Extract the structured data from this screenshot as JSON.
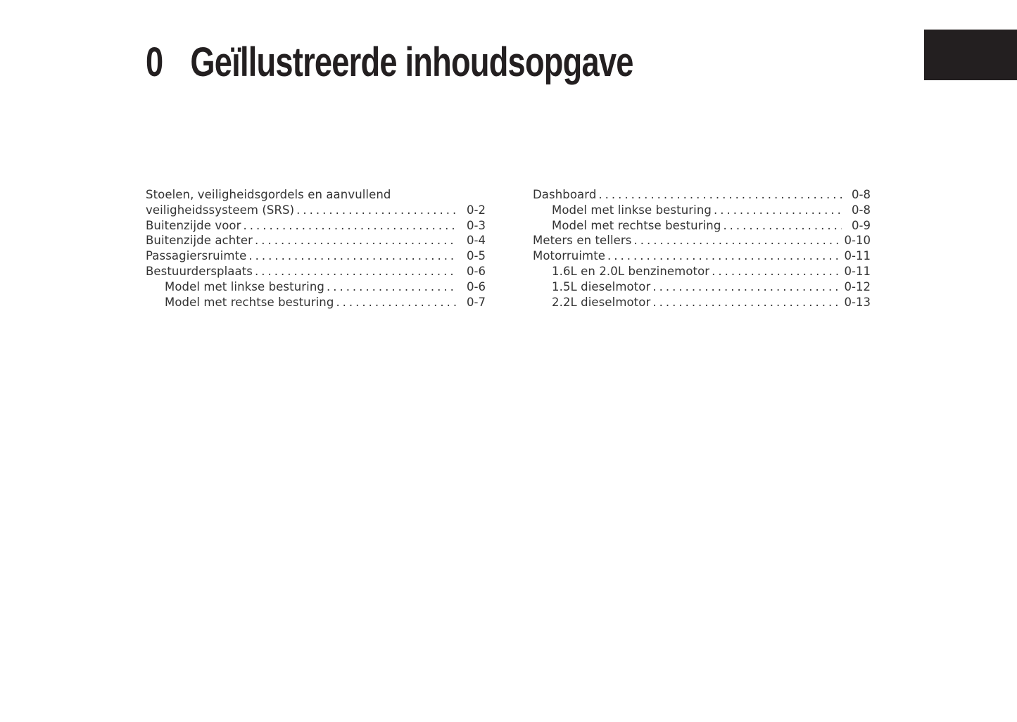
{
  "page": {
    "background_color": "#ffffff",
    "text_color": "#333333",
    "accent_black": "#231f20"
  },
  "header": {
    "chapter_number": "0",
    "title": "Geïllustreerde inhoudsopgave"
  },
  "toc": {
    "columns": [
      {
        "entries": [
          {
            "text": "Stoelen, veiligheidsgordels en aanvullend",
            "page": "",
            "indent": 0
          },
          {
            "text": "veiligheidssysteem (SRS)",
            "page": "0-2",
            "indent": 0
          },
          {
            "text": "Buitenzijde voor",
            "page": "0-3",
            "indent": 0
          },
          {
            "text": "Buitenzijde achter",
            "page": "0-4",
            "indent": 0
          },
          {
            "text": "Passagiersruimte",
            "page": "0-5",
            "indent": 0
          },
          {
            "text": "Bestuurdersplaats",
            "page": "0-6",
            "indent": 0
          },
          {
            "text": "Model met linkse besturing",
            "page": "0-6",
            "indent": 1
          },
          {
            "text": "Model met rechtse besturing",
            "page": "0-7",
            "indent": 1
          }
        ]
      },
      {
        "entries": [
          {
            "text": "Dashboard",
            "page": "0-8",
            "indent": 0
          },
          {
            "text": "Model met linkse besturing",
            "page": "0-8",
            "indent": 1
          },
          {
            "text": "Model met rechtse besturing",
            "page": "0-9",
            "indent": 1
          },
          {
            "text": "Meters en tellers",
            "page": "0-10",
            "indent": 0
          },
          {
            "text": "Motorruimte",
            "page": "0-11",
            "indent": 0
          },
          {
            "text": "1.6L en 2.0L benzinemotor",
            "page": "0-11",
            "indent": 1
          },
          {
            "text": "1.5L dieselmotor",
            "page": "0-12",
            "indent": 1
          },
          {
            "text": "2.2L dieselmotor",
            "page": "0-13",
            "indent": 1
          }
        ]
      }
    ]
  }
}
